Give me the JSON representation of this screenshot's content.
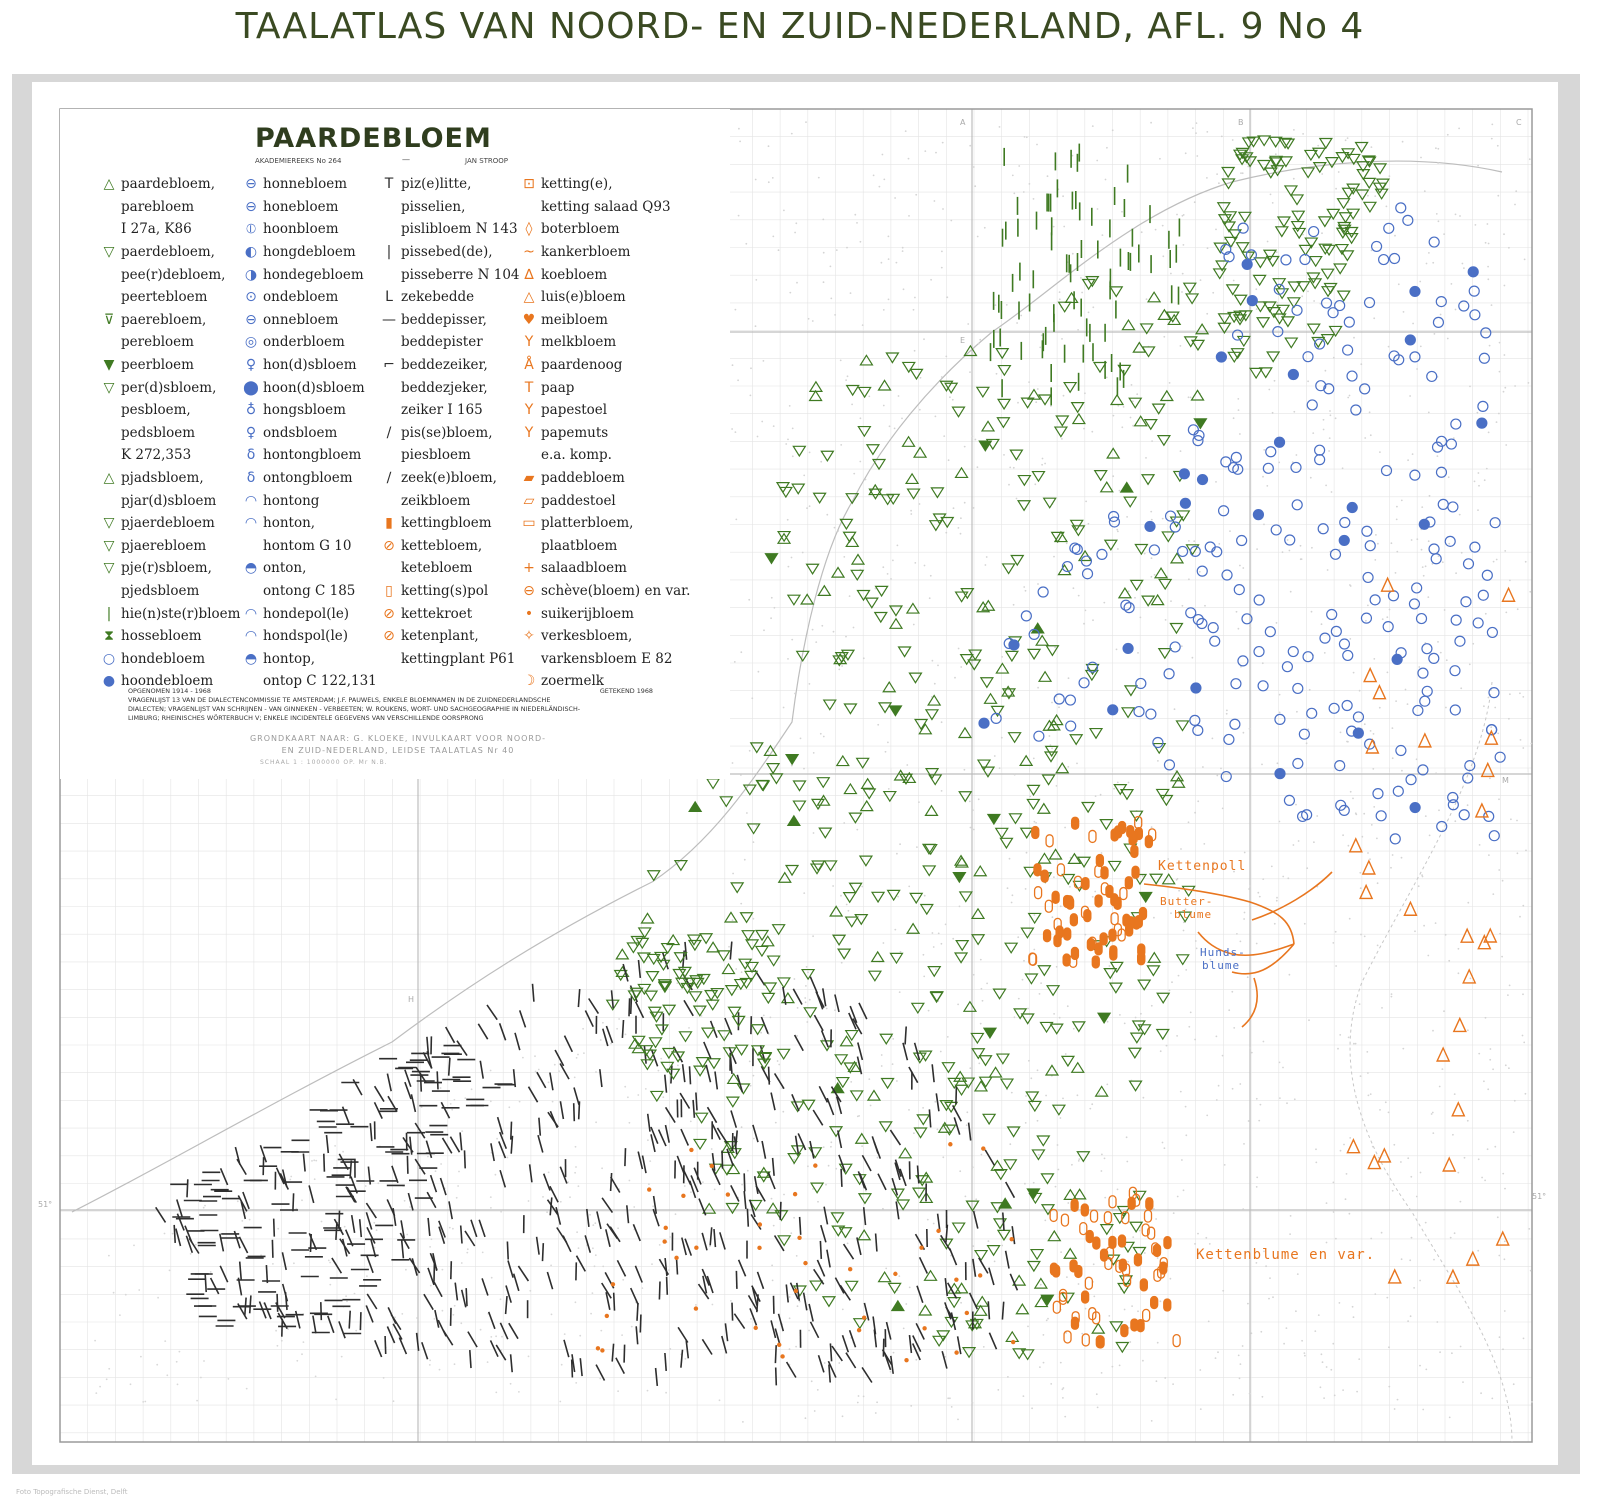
{
  "title": "TAALATLAS VAN NOORD- EN ZUID-NEDERLAND, AFL. 9 No 4",
  "map_title": "PAARDEBLOEM",
  "series_label": "AKADEMIEREEKS No 264",
  "author": "JAN STROOP",
  "colors": {
    "green": "#3f7a22",
    "blue": "#4a6fc5",
    "orange": "#e8761f",
    "ink": "#2e2e2e",
    "grid": "#c9c9c9",
    "border": "#9a9a9a"
  },
  "legend_columns": [
    [
      {
        "symbol": "△",
        "color": "green",
        "text": "paardebloem,"
      },
      {
        "symbol": "",
        "color": "green",
        "text": "parebloem"
      },
      {
        "symbol": "",
        "color": "green",
        "text": "I 27a, K86"
      },
      {
        "symbol": "▽",
        "color": "green",
        "text": "paerdebloem,"
      },
      {
        "symbol": "",
        "color": "green",
        "text": "pee(r)debloem,"
      },
      {
        "symbol": "",
        "color": "green",
        "text": "peertebloem"
      },
      {
        "symbol": "⊽",
        "color": "green",
        "text": "paerebloem,"
      },
      {
        "symbol": "",
        "color": "green",
        "text": "perebloem"
      },
      {
        "symbol": "▼",
        "color": "green",
        "text": "peerbloem"
      },
      {
        "symbol": "▽",
        "color": "green",
        "text": "per(d)sbloem,"
      },
      {
        "symbol": "",
        "color": "green",
        "text": "pesbloem,"
      },
      {
        "symbol": "",
        "color": "green",
        "text": "pedsbloem"
      },
      {
        "symbol": "",
        "color": "green",
        "text": "K 272,353"
      },
      {
        "symbol": "△",
        "color": "green",
        "text": "pjadsbloem,"
      },
      {
        "symbol": "",
        "color": "green",
        "text": "pjar(d)sbloem"
      },
      {
        "symbol": "▽",
        "color": "green",
        "text": "pjaerdebloem"
      },
      {
        "symbol": "▽",
        "color": "green",
        "text": "pjaerebloem"
      },
      {
        "symbol": "▽",
        "color": "green",
        "text": "pje(r)sbloem,"
      },
      {
        "symbol": "",
        "color": "green",
        "text": "pjedsbloem"
      },
      {
        "symbol": "|",
        "color": "green",
        "text": "hie(n)ste(r)bloem"
      },
      {
        "symbol": "⧗",
        "color": "green",
        "text": "hossebloem"
      },
      {
        "symbol": "○",
        "color": "blue",
        "text": "hondebloem"
      },
      {
        "symbol": "●",
        "color": "blue",
        "text": "hoondebloem"
      }
    ],
    [
      {
        "symbol": "⊖",
        "color": "blue",
        "text": "honnebloem"
      },
      {
        "symbol": "⊖",
        "color": "blue",
        "text": "honebloem"
      },
      {
        "symbol": "⦶",
        "color": "blue",
        "text": "hoonbloem"
      },
      {
        "symbol": "◐",
        "color": "blue",
        "text": "hongdebloem"
      },
      {
        "symbol": "◑",
        "color": "blue",
        "text": "hondegebloem"
      },
      {
        "symbol": "⊙",
        "color": "blue",
        "text": "ondebloem"
      },
      {
        "symbol": "⊖",
        "color": "blue",
        "text": "onnebloem"
      },
      {
        "symbol": "◎",
        "color": "blue",
        "text": "onderbloem"
      },
      {
        "symbol": "♀",
        "color": "blue",
        "text": "hon(d)sbloem"
      },
      {
        "symbol": "⬤",
        "color": "blue",
        "text": "hoon(d)sbloem"
      },
      {
        "symbol": "♁",
        "color": "blue",
        "text": "hongsbloem"
      },
      {
        "symbol": "♀",
        "color": "blue",
        "text": "ondsbloem"
      },
      {
        "symbol": "δ",
        "color": "blue",
        "text": "hontongbloem"
      },
      {
        "symbol": "δ",
        "color": "blue",
        "text": "ontongbloem"
      },
      {
        "symbol": "◠",
        "color": "blue",
        "text": "hontong"
      },
      {
        "symbol": "◠",
        "color": "blue",
        "text": "honton,"
      },
      {
        "symbol": "",
        "color": "blue",
        "text": "hontom G 10"
      },
      {
        "symbol": "◓",
        "color": "blue",
        "text": "onton,"
      },
      {
        "symbol": "",
        "color": "blue",
        "text": "ontong C 185"
      },
      {
        "symbol": "◠",
        "color": "blue",
        "text": "hondepol(le)"
      },
      {
        "symbol": "◠",
        "color": "blue",
        "text": "hondspol(le)"
      },
      {
        "symbol": "◓",
        "color": "blue",
        "text": "hontop,"
      },
      {
        "symbol": "",
        "color": "blue",
        "text": "ontop C 122,131"
      }
    ],
    [
      {
        "symbol": "T",
        "color": "ink",
        "text": "piz(e)litte,"
      },
      {
        "symbol": "",
        "color": "ink",
        "text": "pisselien,"
      },
      {
        "symbol": "",
        "color": "ink",
        "text": "pislibloem N 143"
      },
      {
        "symbol": "|",
        "color": "ink",
        "text": "pissebed(de),"
      },
      {
        "symbol": "",
        "color": "ink",
        "text": "pisseberre N 104"
      },
      {
        "symbol": "L",
        "color": "ink",
        "text": "zekebedde"
      },
      {
        "symbol": "—",
        "color": "ink",
        "text": "beddepisser,"
      },
      {
        "symbol": "",
        "color": "ink",
        "text": "beddepister"
      },
      {
        "symbol": "⌐",
        "color": "ink",
        "text": "beddezeiker,"
      },
      {
        "symbol": "",
        "color": "ink",
        "text": "beddezjeker,"
      },
      {
        "symbol": "",
        "color": "ink",
        "text": "zeiker I 165"
      },
      {
        "symbol": "/",
        "color": "ink",
        "text": "pis(se)bloem,"
      },
      {
        "symbol": "",
        "color": "ink",
        "text": "piesbloem"
      },
      {
        "symbol": "∕",
        "color": "ink",
        "text": "zeek(e)bloem,"
      },
      {
        "symbol": "",
        "color": "ink",
        "text": "zeikbloem"
      },
      {
        "symbol": "▮",
        "color": "orange",
        "text": "kettingbloem"
      },
      {
        "symbol": "⊘",
        "color": "orange",
        "text": "kettebloem,"
      },
      {
        "symbol": "",
        "color": "orange",
        "text": "ketebloem"
      },
      {
        "symbol": "▯",
        "color": "orange",
        "text": "ketting(s)pol"
      },
      {
        "symbol": "⊘",
        "color": "orange",
        "text": "kettekroet"
      },
      {
        "symbol": "⊘",
        "color": "orange",
        "text": "ketenplant,"
      },
      {
        "symbol": "",
        "color": "orange",
        "text": "kettingplant P61"
      }
    ],
    [
      {
        "symbol": "⊡",
        "color": "orange",
        "text": "ketting(e),"
      },
      {
        "symbol": "",
        "color": "orange",
        "text": "ketting salaad Q93"
      },
      {
        "symbol": "◊",
        "color": "orange",
        "text": "boterbloem"
      },
      {
        "symbol": "~",
        "color": "orange",
        "text": "kankerbloem"
      },
      {
        "symbol": "∆",
        "color": "orange",
        "text": "koebloem"
      },
      {
        "symbol": "△",
        "color": "orange",
        "text": "luis(e)bloem"
      },
      {
        "symbol": "♥",
        "color": "orange",
        "text": "meibloem"
      },
      {
        "symbol": "Y",
        "color": "orange",
        "text": "melkbloem"
      },
      {
        "symbol": "Å",
        "color": "orange",
        "text": "paardenoog"
      },
      {
        "symbol": "T",
        "color": "orange",
        "text": "paap"
      },
      {
        "symbol": "Y",
        "color": "orange",
        "text": "papestoel"
      },
      {
        "symbol": "Y",
        "color": "orange",
        "text": "papemuts"
      },
      {
        "symbol": "",
        "color": "orange",
        "text": "e.a. komp."
      },
      {
        "symbol": "▰",
        "color": "orange",
        "text": "paddebloem"
      },
      {
        "symbol": "▱",
        "color": "orange",
        "text": "paddestoel"
      },
      {
        "symbol": "▭",
        "color": "orange",
        "text": "platterbloem,"
      },
      {
        "symbol": "",
        "color": "orange",
        "text": "plaatbloem"
      },
      {
        "symbol": "+",
        "color": "orange",
        "text": "salaadbloem"
      },
      {
        "symbol": "⊖",
        "color": "orange",
        "text": "schève(bloem) en var."
      },
      {
        "symbol": "•",
        "color": "orange",
        "text": "suikerijbloem"
      },
      {
        "symbol": "✧",
        "color": "orange",
        "text": "verkesbloem,"
      },
      {
        "symbol": "",
        "color": "orange",
        "text": "varkensbloem E 82"
      },
      {
        "symbol": "☽",
        "color": "orange",
        "text": "zoermelk"
      }
    ]
  ],
  "notes": {
    "line1": "OPGENOMEN 1914 - 1968",
    "line1_right": "GETEKEND 1968",
    "line2": "VRAGENLIJST 13 VAN DE DIALECTENCOMMISSIE TE AMSTERDAM; J.F. PAUWELS, ENKELE BLOEMNAMEN IN DE ZUIDNEDERLANDSCHE",
    "line3": "DIALECTEN; VRAGENLIJST VAN SCHRIJNEN - VAN GINNEKEN - VERBEETEN; W. ROUKENS, WORT- UND SACHGEOGRAPHIE IN NIEDERLÄNDISCH-",
    "line4": "LIMBURG; RHEINISCHES WÖRTERBUCH V; ENKELE INCIDENTELE GEGEVENS VAN VERSCHILLENDE OORSPRONG",
    "base1": "GRONDKAART NAAR: G. KLOEKE, INVULKAART VOOR NOORD-",
    "base2": "EN ZUID-NEDERLAND, LEIDSE TAALATLAS Nr 40",
    "scale": "SCHAAL 1 : 1000000   OP. Mr N.B."
  },
  "map_labels": {
    "kettenpoll": "Kettenpoll",
    "butter1": "Butter-",
    "butter2": "blume",
    "hunds1": "Hunds-",
    "hunds2": "blume",
    "kettenblume": "Kettenblume en var."
  },
  "grid_letters": {
    "a": "A",
    "b": "B",
    "c": "C",
    "e": "E",
    "m": "M",
    "h": "H",
    "lat": "51°",
    "lat_r": "51°"
  },
  "footer": "Foto Topografische Dienst, Delft"
}
